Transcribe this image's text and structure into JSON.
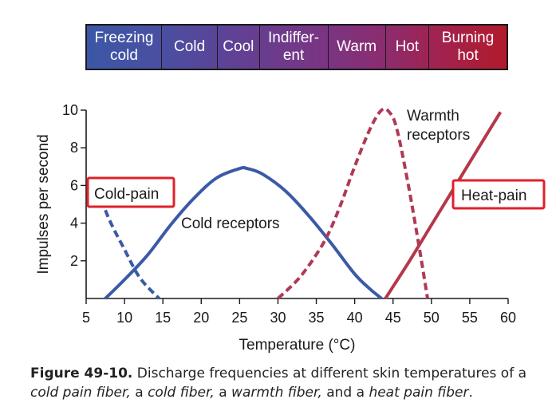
{
  "scale_bar": {
    "cells": [
      {
        "label": "Freezing\ncold",
        "color_left": "#3b57a6",
        "color_right": "#4a4fa1"
      },
      {
        "label": "Cold",
        "color_left": "#4a4fa1",
        "color_right": "#5a4498"
      },
      {
        "label": "Cool",
        "color_left": "#5a4498",
        "color_right": "#683d8f"
      },
      {
        "label": "Indiffer-\nent",
        "color_left": "#683d8f",
        "color_right": "#7b3482"
      },
      {
        "label": "Warm",
        "color_left": "#7b3482",
        "color_right": "#8c2c6e"
      },
      {
        "label": "Hot",
        "color_left": "#8c2c6e",
        "color_right": "#9e2454"
      },
      {
        "label": "Burning\nhot",
        "color_left": "#9e2454",
        "color_right": "#b21a2c"
      }
    ]
  },
  "chart_data": {
    "type": "line",
    "xlabel": "Temperature (°C)",
    "ylabel": "Impulses per second",
    "xlim": [
      5,
      60
    ],
    "ylim": [
      0,
      10
    ],
    "xticks": [
      5,
      10,
      15,
      20,
      25,
      30,
      35,
      40,
      45,
      50,
      55,
      60
    ],
    "yticks": [
      2,
      4,
      6,
      8,
      10
    ],
    "series": [
      {
        "name": "Cold-pain",
        "style": "dashed",
        "color": "#3b5aa6",
        "x": [
          6.5,
          8,
          10,
          12,
          14.5
        ],
        "y": [
          5.8,
          4.2,
          2.6,
          1.1,
          0
        ]
      },
      {
        "name": "Cold receptors",
        "style": "solid",
        "color": "#3b5aa6",
        "x": [
          7.5,
          10,
          13,
          16,
          19,
          22,
          25,
          26,
          28,
          31,
          34,
          37,
          40,
          42,
          43.5
        ],
        "y": [
          0,
          1.0,
          2.3,
          3.9,
          5.3,
          6.4,
          6.9,
          6.9,
          6.6,
          5.7,
          4.4,
          2.9,
          1.3,
          0.5,
          0
        ]
      },
      {
        "name": "Warmth\nreceptors",
        "style": "dashed",
        "color": "#b03a55",
        "x": [
          30,
          33,
          36,
          38,
          40,
          42,
          43.5,
          44.5,
          45.5,
          47,
          48.5,
          49.5
        ],
        "y": [
          0,
          1.2,
          3.0,
          4.8,
          7.0,
          9.0,
          10.0,
          9.9,
          9.0,
          6.0,
          2.5,
          0
        ]
      },
      {
        "name": "Heat-pain",
        "style": "solid",
        "color": "#b5384a",
        "x": [
          44,
          47,
          50,
          53,
          56,
          59
        ],
        "y": [
          0,
          1.9,
          3.9,
          5.9,
          7.9,
          9.9
        ]
      }
    ],
    "annotations": [
      {
        "text": "Cold-pain",
        "boxed": true,
        "box_color": "#e0202a"
      },
      {
        "text": "Cold receptors",
        "boxed": false
      },
      {
        "text": "Warmth\nreceptors",
        "boxed": false
      },
      {
        "text": "Heat-pain",
        "boxed": true,
        "box_color": "#e0202a"
      }
    ]
  },
  "caption": {
    "figure_label": "Figure 49-10.",
    "parts": [
      {
        "text": " Discharge frequencies at different skin temperatures of a ",
        "italic": false
      },
      {
        "text": "cold pain fiber,",
        "italic": true
      },
      {
        "text": " a ",
        "italic": false
      },
      {
        "text": "cold fiber,",
        "italic": true
      },
      {
        "text": " a ",
        "italic": false
      },
      {
        "text": "warmth fiber,",
        "italic": true
      },
      {
        "text": " and a ",
        "italic": false
      },
      {
        "text": "heat pain fiber",
        "italic": true
      },
      {
        "text": ".",
        "italic": false
      }
    ]
  }
}
